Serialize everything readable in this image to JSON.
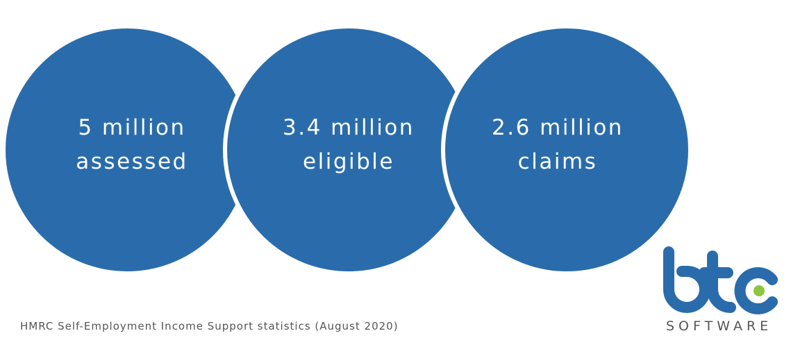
{
  "theme": {
    "circle_color": "#2a6cab",
    "text_color": "#ffffff",
    "logo_blue": "#2a6cab",
    "logo_green": "#8cc63f",
    "caption_color": "#555555"
  },
  "stats": [
    {
      "value": "5 million",
      "label": "assessed"
    },
    {
      "value": "3.4 million",
      "label": "eligible"
    },
    {
      "value": "2.6 million",
      "label": "claims"
    }
  ],
  "source": "HMRC Self-Employment Income Support statistics (August 2020)",
  "logo": {
    "wordmark": "btc",
    "subtitle": "SOFTWARE"
  }
}
